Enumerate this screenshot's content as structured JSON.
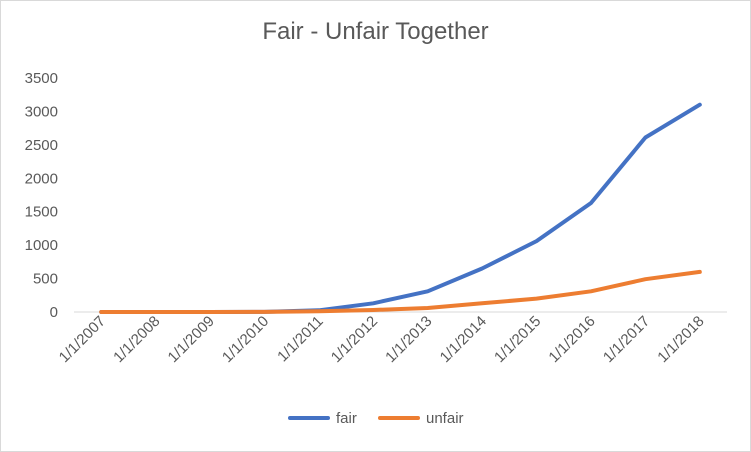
{
  "chart_data": {
    "type": "line",
    "title": "Fair - Unfair Together",
    "xlabel": "",
    "ylabel": "",
    "categories": [
      "1/1/2007",
      "1/1/2008",
      "1/1/2009",
      "1/1/2010",
      "1/1/2011",
      "1/1/2012",
      "1/1/2013",
      "1/1/2014",
      "1/1/2015",
      "1/1/2016",
      "1/1/2017",
      "1/1/2018"
    ],
    "ylim": [
      0,
      3500
    ],
    "yticks": [
      "0",
      "500",
      "1000",
      "1500",
      "2000",
      "2500",
      "3000",
      "3500"
    ],
    "grid": false,
    "legend_position": "bottom",
    "series": [
      {
        "name": "fair",
        "color": "#4472c4",
        "values": [
          0,
          0,
          0,
          2,
          25,
          130,
          310,
          650,
          1060,
          1630,
          2610,
          3100
        ]
      },
      {
        "name": "unfair",
        "color": "#ed7d31",
        "values": [
          0,
          0,
          0,
          1,
          10,
          30,
          60,
          130,
          200,
          310,
          490,
          600
        ]
      }
    ]
  }
}
